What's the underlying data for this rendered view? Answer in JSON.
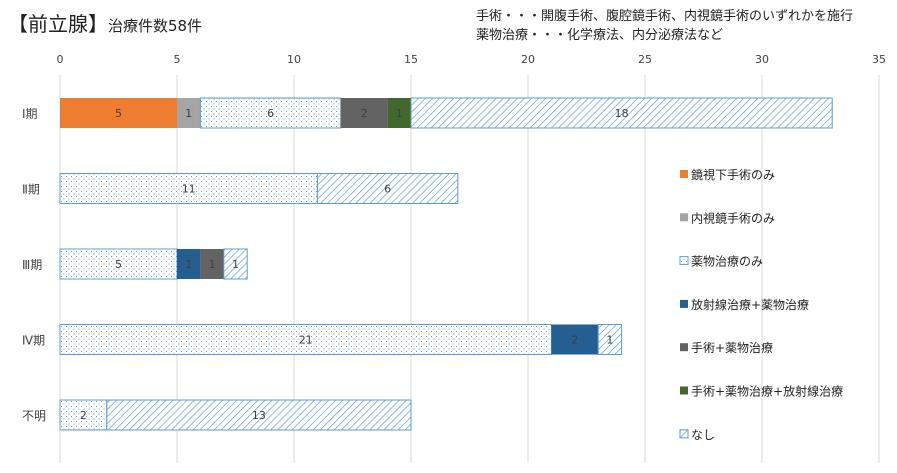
{
  "title": {
    "main": "【前立腺】",
    "sub": "治療件数58件"
  },
  "notes": [
    "手術・・・開腹手術、腹腔鏡手術、内視鏡手術のいずれかを施行",
    "薬物治療・・・化学療法、内分泌療法など"
  ],
  "chart_data": {
    "type": "bar",
    "orientation": "horizontal",
    "stacked": true,
    "title": "【前立腺】治療件数58件",
    "categories": [
      "Ⅰ期",
      "Ⅱ期",
      "Ⅲ期",
      "Ⅳ期",
      "不明"
    ],
    "xlim": [
      0,
      35
    ],
    "xticks": [
      0,
      5,
      10,
      15,
      20,
      25,
      30,
      35
    ],
    "grid": true,
    "legend_position": "right",
    "series": [
      {
        "name": "鏡視下手術のみ",
        "color": "#ED7D31",
        "pattern": "solid",
        "values": [
          5,
          0,
          0,
          0,
          0
        ]
      },
      {
        "name": "内視鏡手術のみ",
        "color": "#A5A5A5",
        "pattern": "solid",
        "values": [
          1,
          0,
          0,
          0,
          0
        ]
      },
      {
        "name": "薬物治療のみ",
        "color": "#5B9BD5",
        "pattern": "dots",
        "values": [
          6,
          11,
          5,
          21,
          2
        ]
      },
      {
        "name": "放射線治療+薬物治療",
        "color": "#255E91",
        "pattern": "solid",
        "values": [
          0,
          0,
          1,
          2,
          0
        ]
      },
      {
        "name": "手術+薬物治療",
        "color": "#636363",
        "pattern": "solid",
        "values": [
          2,
          0,
          1,
          0,
          0
        ]
      },
      {
        "name": "手術+薬物治療+放射線治療",
        "color": "#43682B",
        "pattern": "solid",
        "values": [
          1,
          0,
          0,
          0,
          0
        ]
      },
      {
        "name": "なし",
        "color": "#5B9BD5",
        "pattern": "hatch",
        "values": [
          18,
          6,
          1,
          1,
          13
        ]
      }
    ]
  }
}
